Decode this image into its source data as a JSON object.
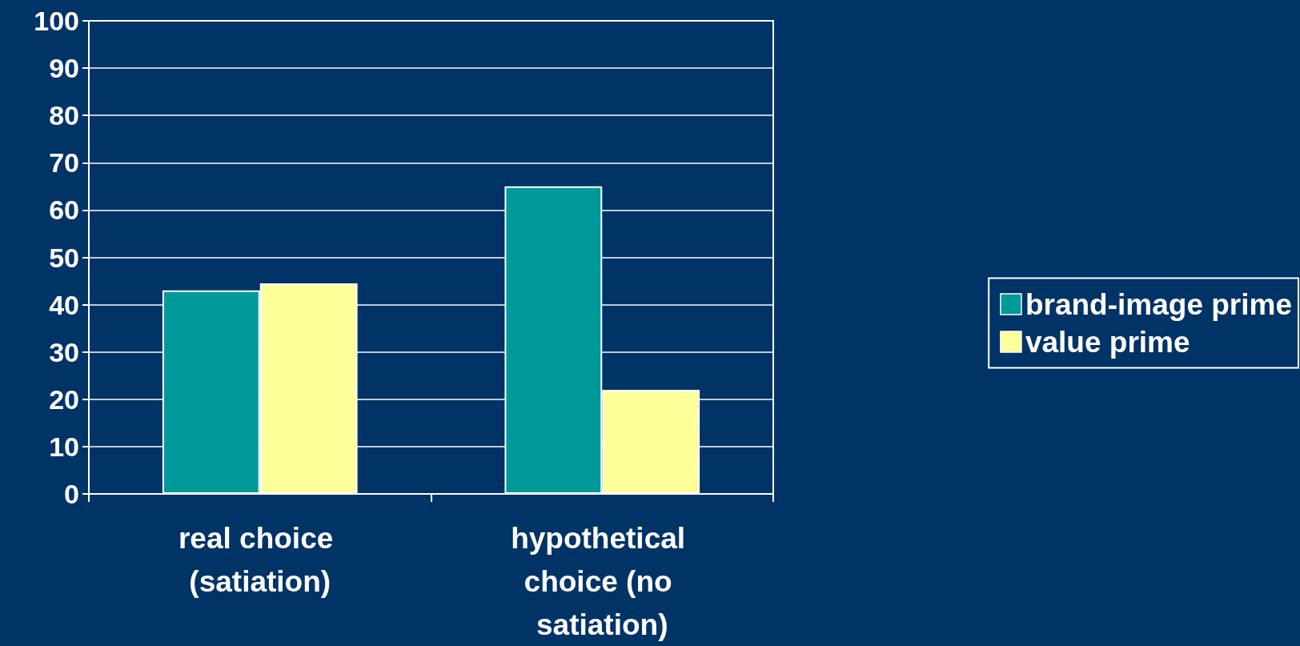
{
  "chart_data": {
    "type": "bar",
    "categories": [
      "real choice (satiation)",
      "hypothetical choice (no satiation)"
    ],
    "series": [
      {
        "name": "brand-image prime",
        "color": "#009999",
        "values": [
          43,
          65
        ]
      },
      {
        "name": "value prime",
        "color": "#ffff99",
        "values": [
          44.5,
          22
        ]
      }
    ],
    "ylim": [
      0,
      100
    ],
    "yticks": [
      0,
      10,
      20,
      30,
      40,
      50,
      60,
      70,
      80,
      90,
      100
    ],
    "grid": "y",
    "legend": "right"
  }
}
